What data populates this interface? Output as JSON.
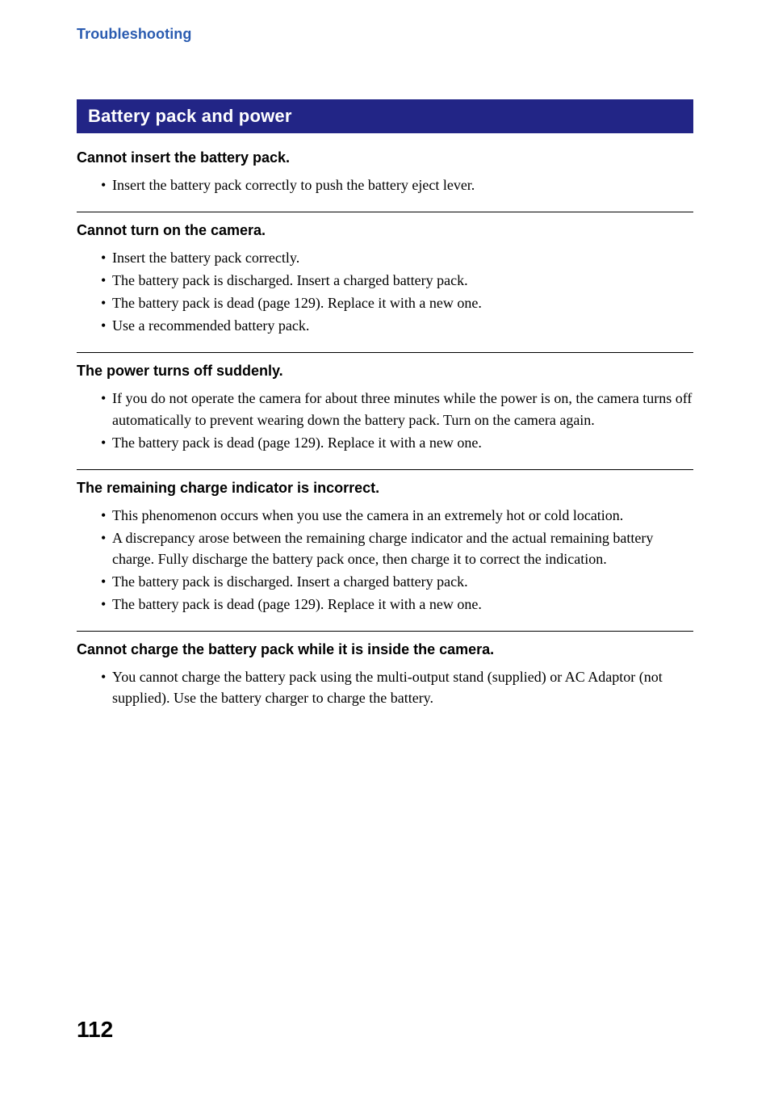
{
  "breadcrumb": "Troubleshooting",
  "section_title": "Battery pack and power",
  "issues": [
    {
      "title": "Cannot insert the battery pack.",
      "bullets": [
        "Insert the battery pack correctly to push the battery eject lever."
      ]
    },
    {
      "title": "Cannot turn on the camera.",
      "bullets": [
        "Insert the battery pack correctly.",
        "The battery pack is discharged. Insert a charged battery pack.",
        "The battery pack is dead (page 129). Replace it with a new one.",
        "Use a recommended battery pack."
      ]
    },
    {
      "title": "The power turns off suddenly.",
      "bullets": [
        "If you do not operate the camera for about three minutes while the power is on, the camera turns off automatically to prevent wearing down the battery pack. Turn on the camera again.",
        "The battery pack is dead (page 129). Replace it with a new one."
      ]
    },
    {
      "title": "The remaining charge indicator is incorrect.",
      "bullets": [
        "This phenomenon occurs when you use the camera in an extremely hot or cold location.",
        "A discrepancy arose between the remaining charge indicator and the actual remaining battery charge. Fully discharge the battery pack once, then charge it to correct the indication.",
        "The battery pack is discharged. Insert a charged battery pack.",
        "The battery pack is dead (page 129). Replace it with a new one."
      ]
    },
    {
      "title": "Cannot charge the battery pack while it is inside the camera.",
      "bullets": [
        "You cannot charge the battery pack using the multi-output stand (supplied) or AC Adaptor (not supplied). Use the battery charger to charge the battery."
      ]
    }
  ],
  "page_number": "112",
  "colors": {
    "breadcrumb": "#2a5bb0",
    "section_bar_bg": "#222586",
    "section_bar_text": "#ffffff",
    "body_text": "#000000",
    "background": "#ffffff",
    "divider": "#000000"
  }
}
